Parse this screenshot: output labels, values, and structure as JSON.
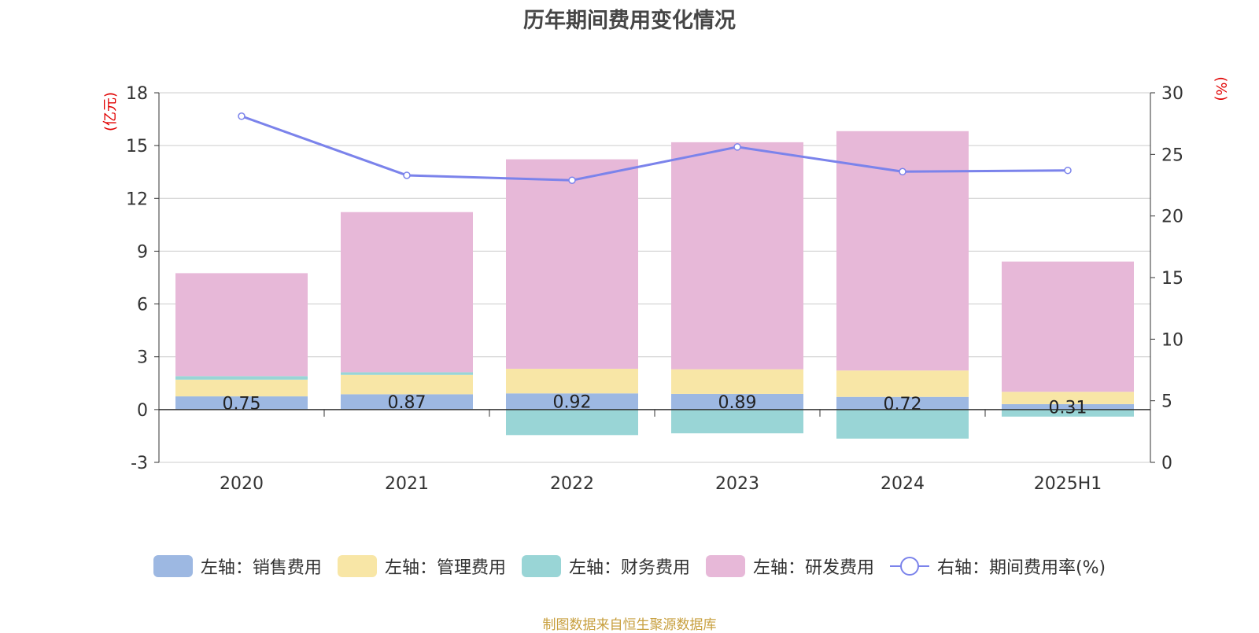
{
  "chart_data": {
    "type": "bar",
    "title": "历年期间费用变化情况",
    "categories": [
      "2020",
      "2021",
      "2022",
      "2023",
      "2024",
      "2025H1"
    ],
    "left_axis": {
      "unit_label": "(亿元)",
      "ylim": [
        -3,
        18
      ],
      "ticks": [
        -3,
        0,
        3,
        6,
        9,
        12,
        15,
        18
      ]
    },
    "right_axis": {
      "unit_label": "(%)",
      "ylim": [
        0,
        30
      ],
      "ticks": [
        0,
        5,
        10,
        15,
        20,
        25,
        30
      ]
    },
    "series": [
      {
        "name": "左轴：销售费用",
        "color": "#9db8e2",
        "axis": "left",
        "stack": true,
        "values": [
          0.75,
          0.87,
          0.92,
          0.89,
          0.72,
          0.31
        ],
        "labels": [
          "0.75",
          "0.87",
          "0.92",
          "0.89",
          "0.72",
          "0.31"
        ]
      },
      {
        "name": "左轴：管理费用",
        "color": "#f8e6a6",
        "axis": "left",
        "stack": true,
        "values": [
          0.95,
          1.1,
          1.4,
          1.4,
          1.5,
          0.7
        ]
      },
      {
        "name": "左轴：财务费用",
        "color": "#99d5d6",
        "axis": "left",
        "stack": true,
        "values": [
          0.2,
          0.15,
          -1.45,
          -1.35,
          -1.65,
          -0.4
        ]
      },
      {
        "name": "左轴：研发费用",
        "color": "#e7b8d8",
        "axis": "left",
        "stack": true,
        "values": [
          5.85,
          9.1,
          11.9,
          12.9,
          13.6,
          7.4
        ]
      },
      {
        "name": "右轴：期间费用率(%)",
        "color": "#7b83eb",
        "axis": "right",
        "type": "line",
        "values": [
          28.1,
          23.3,
          22.9,
          25.6,
          23.6,
          23.7
        ]
      }
    ],
    "grid": true,
    "legend_position": "bottom"
  },
  "footer": {
    "source": "制图数据来自恒生聚源数据库"
  }
}
